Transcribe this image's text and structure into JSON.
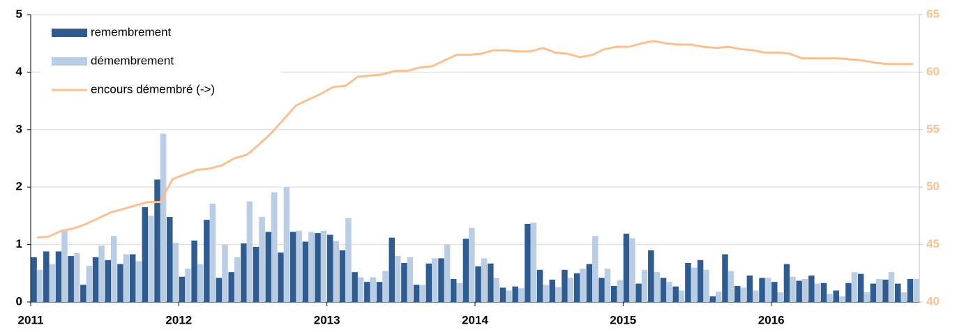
{
  "chart_data": {
    "type": "bar",
    "categories": [
      "2011",
      null,
      null,
      null,
      null,
      null,
      null,
      null,
      null,
      null,
      null,
      null,
      "2012",
      null,
      null,
      null,
      null,
      null,
      null,
      null,
      null,
      null,
      null,
      null,
      "2013",
      null,
      null,
      null,
      null,
      null,
      null,
      null,
      null,
      null,
      null,
      null,
      "2014",
      null,
      null,
      null,
      null,
      null,
      null,
      null,
      null,
      null,
      null,
      null,
      "2015",
      null,
      null,
      null,
      null,
      null,
      null,
      null,
      null,
      null,
      null,
      null,
      "2016",
      null,
      null,
      null,
      null,
      null,
      null,
      null,
      null,
      null,
      null,
      null
    ],
    "series": [
      {
        "name": "remembrement",
        "color": "#2f5b8e",
        "values": [
          0.78,
          0.88,
          0.88,
          0.8,
          0.3,
          0.78,
          0.73,
          0.66,
          0.83,
          1.65,
          2.13,
          1.48,
          0.44,
          1.07,
          1.43,
          0.42,
          0.52,
          1.02,
          0.96,
          1.22,
          0.86,
          1.22,
          1.05,
          1.2,
          1.17,
          0.9,
          0.52,
          0.35,
          0.35,
          1.12,
          0.68,
          0.3,
          0.67,
          0.76,
          0.4,
          1.1,
          0.62,
          0.67,
          0.25,
          0.27,
          1.36,
          0.56,
          0.39,
          0.56,
          0.5,
          0.66,
          0.42,
          0.28,
          1.19,
          0.32,
          0.9,
          0.42,
          0.27,
          0.68,
          0.73,
          0.1,
          0.83,
          0.28,
          0.46,
          0.42,
          0.35,
          0.66,
          0.37,
          0.46,
          0.33,
          0.2,
          0.33,
          0.49,
          0.32,
          0.39,
          0.32,
          0.4
        ]
      },
      {
        "name": "démembrement",
        "color": "#b9cde5",
        "values": [
          0.56,
          0.66,
          1.25,
          0.85,
          0.63,
          0.98,
          1.15,
          0.83,
          0.71,
          1.5,
          2.93,
          1.03,
          0.58,
          0.66,
          1.71,
          1.0,
          0.78,
          1.75,
          1.48,
          1.91,
          2.0,
          1.24,
          1.22,
          1.24,
          1.06,
          1.46,
          0.43,
          0.43,
          0.54,
          0.8,
          0.78,
          0.3,
          0.76,
          1.0,
          0.33,
          1.29,
          0.76,
          0.42,
          0.2,
          0.24,
          1.38,
          0.3,
          0.26,
          0.42,
          0.58,
          1.15,
          0.58,
          0.38,
          1.11,
          0.56,
          0.52,
          0.35,
          0.2,
          0.6,
          0.56,
          0.18,
          0.54,
          0.25,
          0.2,
          0.42,
          0.17,
          0.44,
          0.4,
          0.32,
          0.14,
          0.1,
          0.52,
          0.17,
          0.4,
          0.52,
          0.17,
          0.4
        ]
      },
      {
        "name": "encours démembré (->)",
        "color": "#fac08f",
        "type": "line",
        "axis": "y2",
        "values": [
          45.6,
          45.7,
          46.2,
          46.4,
          46.8,
          47.3,
          47.8,
          48.1,
          48.4,
          48.7,
          48.7,
          50.7,
          51.1,
          51.5,
          51.6,
          51.9,
          52.5,
          52.8,
          53.7,
          54.7,
          55.9,
          57.1,
          57.6,
          58.1,
          58.7,
          58.8,
          59.6,
          59.7,
          59.8,
          60.1,
          60.1,
          60.4,
          60.5,
          61.0,
          61.5,
          61.5,
          61.6,
          61.9,
          61.9,
          61.8,
          61.8,
          62.1,
          61.7,
          61.6,
          61.3,
          61.5,
          62.0,
          62.2,
          62.2,
          62.5,
          62.7,
          62.5,
          62.4,
          62.4,
          62.2,
          62.1,
          62.2,
          62.0,
          61.9,
          61.7,
          61.7,
          61.6,
          61.2,
          61.2,
          61.2,
          61.2,
          61.1,
          61.0,
          60.8,
          60.7,
          60.7,
          60.7
        ]
      }
    ],
    "ylim": [
      0,
      5
    ],
    "yticks": [
      0,
      1,
      2,
      3,
      4,
      5
    ],
    "y2lim": [
      40,
      65
    ],
    "y2ticks": [
      40,
      45,
      50,
      55,
      60,
      65
    ],
    "grid": true,
    "legend": "top-left"
  }
}
